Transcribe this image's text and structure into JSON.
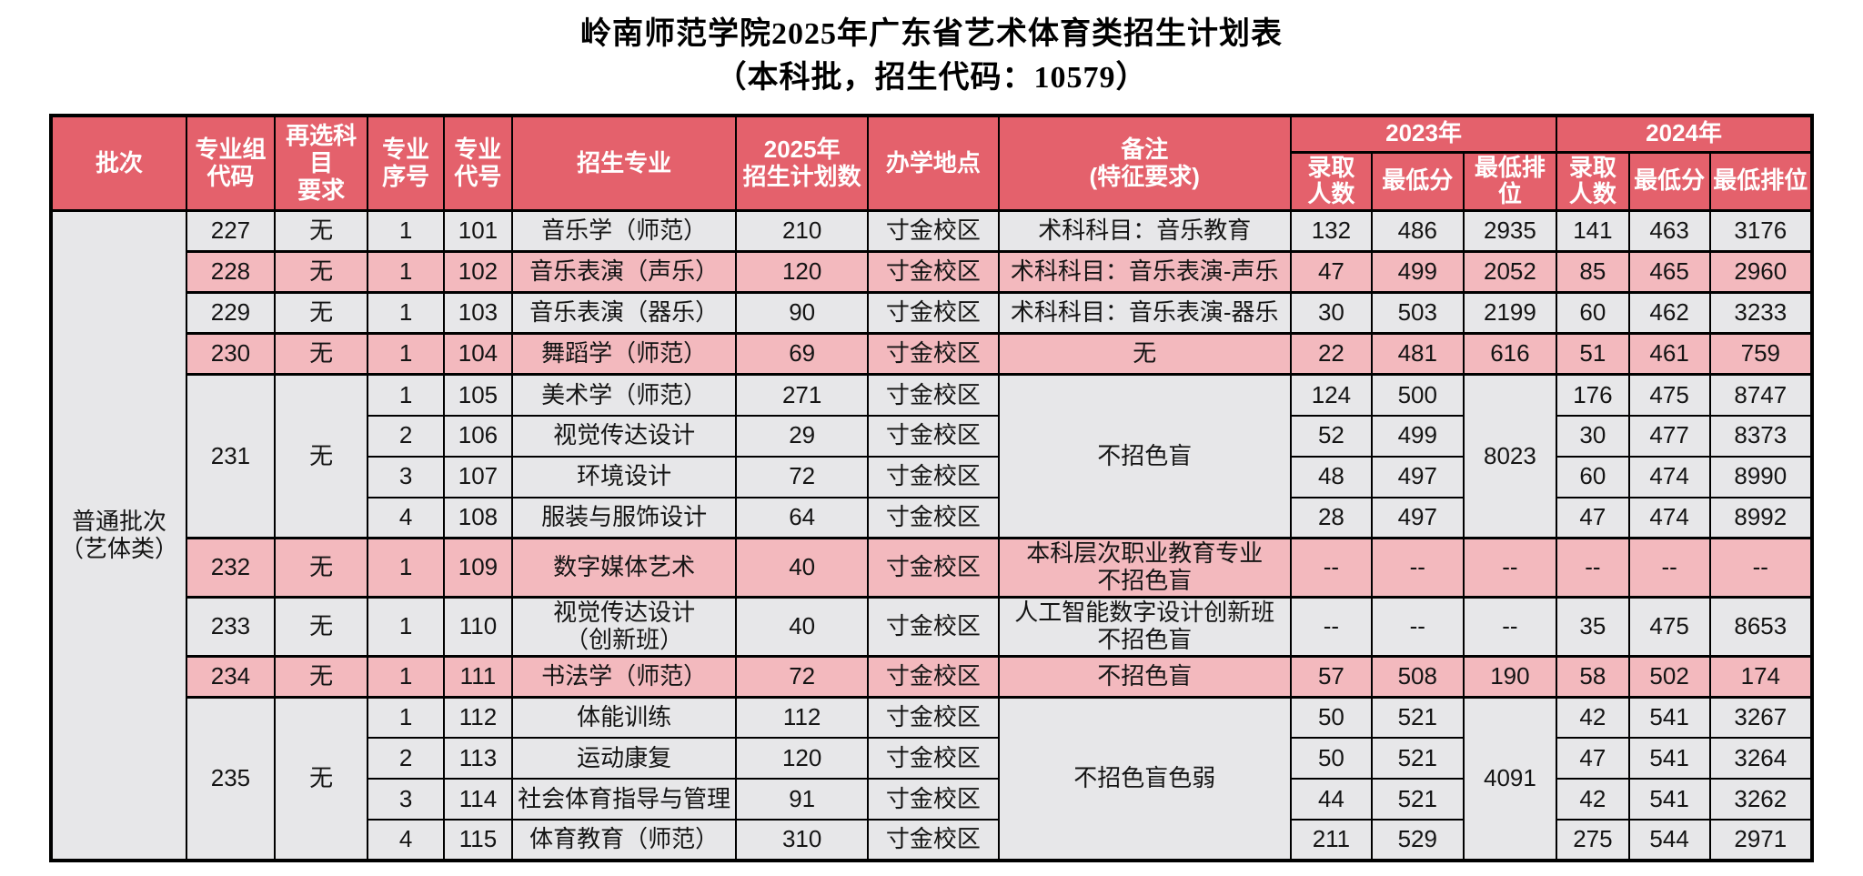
{
  "page": {
    "title_line1": "岭南师范学院2025年广东省艺术体育类招生计划表",
    "title_line2": "（本科批，招生代码：10579）"
  },
  "colors": {
    "header_bg": "#e4616c",
    "row_pink": "#f3b9be",
    "row_gray": "#e7e7e9",
    "border": "#000000",
    "header_text": "#ffffff",
    "body_text": "#141414"
  },
  "table": {
    "header": {
      "batch": "批次",
      "group_code": "专业组\n代码",
      "subject_req": "再选科目\n要求",
      "major_seq": "专业\n序号",
      "major_code": "专业\n代号",
      "major_name": "招生专业",
      "plan_2025": "2025年\n招生计划数",
      "location": "办学地点",
      "remark": "备注\n(特征要求)",
      "year_2023": "2023年",
      "year_2024": "2024年",
      "admitted": "录取\n人数",
      "min_score": "最低分",
      "min_rank": "最低排位"
    },
    "batch_label": "普通批次\n（艺体类）",
    "rows": [
      {
        "tone": "gray",
        "sep": true,
        "cells": [
          {
            "t": "普通批次\n（艺体类）",
            "rs": 15,
            "tone": "gray",
            "name": "batch-cell"
          },
          "227",
          "无",
          "1",
          "101",
          "音乐学（师范）",
          "210",
          "寸金校区",
          "术科科目：音乐教育",
          "132",
          "486",
          "2935",
          "141",
          "463",
          "3176"
        ]
      },
      {
        "tone": "pink",
        "sep": true,
        "cells": [
          "228",
          "无",
          "1",
          "102",
          "音乐表演（声乐）",
          "120",
          "寸金校区",
          "术科科目：音乐表演-声乐",
          "47",
          "499",
          "2052",
          "85",
          "465",
          "2960"
        ]
      },
      {
        "tone": "gray",
        "sep": true,
        "cells": [
          "229",
          "无",
          "1",
          "103",
          "音乐表演（器乐）",
          "90",
          "寸金校区",
          "术科科目：音乐表演-器乐",
          "30",
          "503",
          "2199",
          "60",
          "462",
          "3233"
        ]
      },
      {
        "tone": "pink",
        "sep": true,
        "cells": [
          "230",
          "无",
          "1",
          "104",
          "舞蹈学（师范）",
          "69",
          "寸金校区",
          "无",
          "22",
          "481",
          "616",
          "51",
          "461",
          "759"
        ]
      },
      {
        "tone": "gray",
        "sep": true,
        "cells": [
          {
            "t": "231",
            "rs": 4
          },
          {
            "t": "无",
            "rs": 4
          },
          "1",
          "105",
          "美术学（师范）",
          "271",
          "寸金校区",
          {
            "t": "不招色盲",
            "rs": 4
          },
          "124",
          "500",
          {
            "t": "8023",
            "rs": 4
          },
          "176",
          "475",
          "8747"
        ]
      },
      {
        "tone": "gray",
        "sep": false,
        "cells": [
          "2",
          "106",
          "视觉传达设计",
          "29",
          "寸金校区",
          "52",
          "499",
          "30",
          "477",
          "8373"
        ]
      },
      {
        "tone": "gray",
        "sep": false,
        "cells": [
          "3",
          "107",
          "环境设计",
          "72",
          "寸金校区",
          "48",
          "497",
          "60",
          "474",
          "8990"
        ]
      },
      {
        "tone": "gray",
        "sep": false,
        "cells": [
          "4",
          "108",
          "服装与服饰设计",
          "64",
          "寸金校区",
          "28",
          "497",
          "47",
          "474",
          "8992"
        ]
      },
      {
        "tone": "pink",
        "sep": true,
        "cells": [
          "232",
          "无",
          "1",
          "109",
          "数字媒体艺术",
          "40",
          "寸金校区",
          "本科层次职业教育专业\n不招色盲",
          "--",
          "--",
          "--",
          "--",
          "--",
          "--"
        ]
      },
      {
        "tone": "gray",
        "sep": true,
        "cells": [
          "233",
          "无",
          "1",
          "110",
          "视觉传达设计\n（创新班）",
          "40",
          "寸金校区",
          "人工智能数字设计创新班\n不招色盲",
          "--",
          "--",
          "--",
          "35",
          "475",
          "8653"
        ]
      },
      {
        "tone": "pink",
        "sep": true,
        "cells": [
          "234",
          "无",
          "1",
          "111",
          "书法学（师范）",
          "72",
          "寸金校区",
          "不招色盲",
          "57",
          "508",
          "190",
          "58",
          "502",
          "174"
        ]
      },
      {
        "tone": "gray",
        "sep": true,
        "cells": [
          {
            "t": "235",
            "rs": 4
          },
          {
            "t": "无",
            "rs": 4
          },
          "1",
          "112",
          "体能训练",
          "112",
          "寸金校区",
          {
            "t": "不招色盲色弱",
            "rs": 4
          },
          "50",
          "521",
          {
            "t": "4091",
            "rs": 4
          },
          "42",
          "541",
          "3267"
        ]
      },
      {
        "tone": "gray",
        "sep": false,
        "cells": [
          "2",
          "113",
          "运动康复",
          "120",
          "寸金校区",
          "50",
          "521",
          "47",
          "541",
          "3264"
        ]
      },
      {
        "tone": "gray",
        "sep": false,
        "cells": [
          "3",
          "114",
          "社会体育指导与管理",
          "91",
          "寸金校区",
          "44",
          "521",
          "42",
          "541",
          "3262"
        ]
      },
      {
        "tone": "gray",
        "sep": false,
        "cells": [
          "4",
          "115",
          "体育教育（师范）",
          "310",
          "寸金校区",
          "211",
          "529",
          "275",
          "544",
          "2971"
        ]
      }
    ]
  }
}
